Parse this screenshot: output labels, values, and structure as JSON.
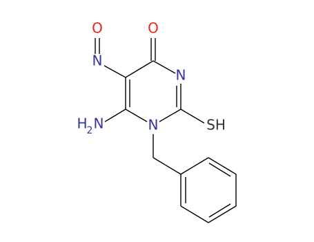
{
  "atoms": [
    {
      "label": "O"
    },
    {
      "label": "N"
    },
    {
      "label": "O"
    },
    {
      "label": "N"
    },
    {
      "label": "SH"
    },
    {
      "label": "N"
    },
    {
      "parts": [
        "H",
        "2",
        "N"
      ]
    }
  ]
}
